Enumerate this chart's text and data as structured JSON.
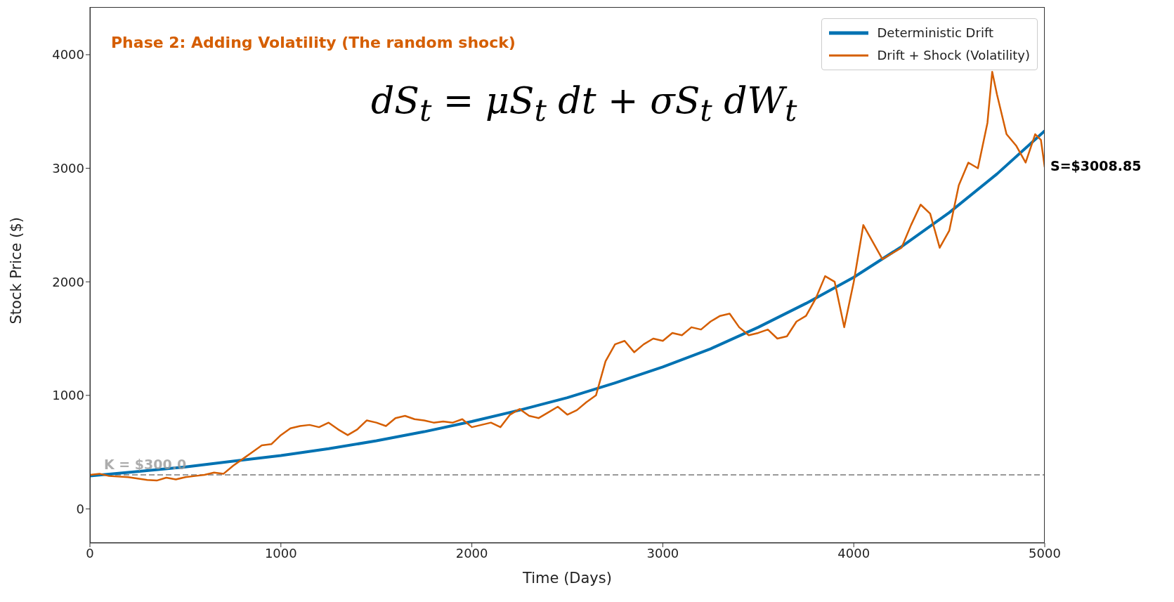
{
  "chart_data": {
    "type": "line",
    "title": "Phase 2: Adding Volatility (The random shock)",
    "xlabel": "Time (Days)",
    "ylabel": "Stock Price ($)",
    "xlim": [
      0,
      5000
    ],
    "xticks": [
      0,
      1000,
      2000,
      3000,
      4000,
      5000
    ],
    "ylim": [
      -300,
      4420
    ],
    "yticks": [
      0,
      1000,
      2000,
      3000,
      4000
    ],
    "grid": false,
    "legend": "top right",
    "marker": "none",
    "series": [
      {
        "name": "Deterministic Drift",
        "color": "#0072b2",
        "x": [
          0,
          250,
          500,
          750,
          1000,
          1250,
          1500,
          1750,
          2000,
          2250,
          2500,
          2750,
          3000,
          3250,
          3500,
          3750,
          4000,
          4250,
          4500,
          4750,
          5000
        ],
        "values": [
          290,
          330,
          370,
          420,
          470,
          530,
          600,
          680,
          770,
          870,
          980,
          1110,
          1250,
          1410,
          1600,
          1810,
          2040,
          2310,
          2610,
          2950,
          3330
        ]
      },
      {
        "name": "Drift + Shock (Volatility)",
        "color": "#d55e00",
        "x": [
          0,
          50,
          100,
          200,
          300,
          350,
          400,
          450,
          500,
          550,
          600,
          650,
          700,
          750,
          800,
          850,
          900,
          950,
          1000,
          1050,
          1100,
          1150,
          1200,
          1250,
          1300,
          1350,
          1400,
          1450,
          1500,
          1550,
          1600,
          1650,
          1700,
          1750,
          1800,
          1850,
          1900,
          1950,
          2000,
          2050,
          2100,
          2150,
          2200,
          2250,
          2300,
          2350,
          2400,
          2450,
          2500,
          2550,
          2600,
          2650,
          2700,
          2750,
          2800,
          2850,
          2900,
          2950,
          3000,
          3050,
          3100,
          3150,
          3200,
          3250,
          3300,
          3350,
          3400,
          3450,
          3500,
          3550,
          3600,
          3650,
          3700,
          3750,
          3800,
          3850,
          3900,
          3950,
          4000,
          4050,
          4100,
          4150,
          4200,
          4250,
          4300,
          4350,
          4400,
          4450,
          4500,
          4550,
          4600,
          4650,
          4700,
          4725,
          4750,
          4800,
          4850,
          4900,
          4950,
          4980,
          5000
        ],
        "values": [
          300,
          310,
          290,
          280,
          255,
          250,
          275,
          260,
          280,
          290,
          300,
          320,
          310,
          380,
          440,
          500,
          560,
          570,
          650,
          710,
          730,
          740,
          720,
          760,
          700,
          650,
          700,
          780,
          760,
          730,
          800,
          820,
          790,
          780,
          760,
          770,
          760,
          790,
          720,
          740,
          760,
          720,
          830,
          880,
          820,
          800,
          850,
          900,
          830,
          870,
          940,
          1000,
          1300,
          1450,
          1480,
          1380,
          1450,
          1500,
          1480,
          1550,
          1530,
          1600,
          1580,
          1650,
          1700,
          1720,
          1600,
          1530,
          1550,
          1580,
          1500,
          1520,
          1650,
          1700,
          1850,
          2050,
          2000,
          1600,
          2000,
          2500,
          2350,
          2200,
          2250,
          2300,
          2500,
          2680,
          2600,
          2300,
          2450,
          2850,
          3050,
          3000,
          3400,
          3850,
          3650,
          3300,
          3200,
          3050,
          3300,
          3250,
          3009
        ]
      }
    ],
    "ref_lines": [
      {
        "axis": "y",
        "value": 300,
        "label": "K = $300.0",
        "color": "#999999",
        "line_style": "dashed"
      }
    ],
    "annotations": [
      "dS$_{t}$ = μS$_{t}$ dt + σS$_{t}$ dW$_{t}$",
      {
        "text": "S=$3008.85",
        "x": 5000,
        "y": 3008.85
      }
    ]
  }
}
